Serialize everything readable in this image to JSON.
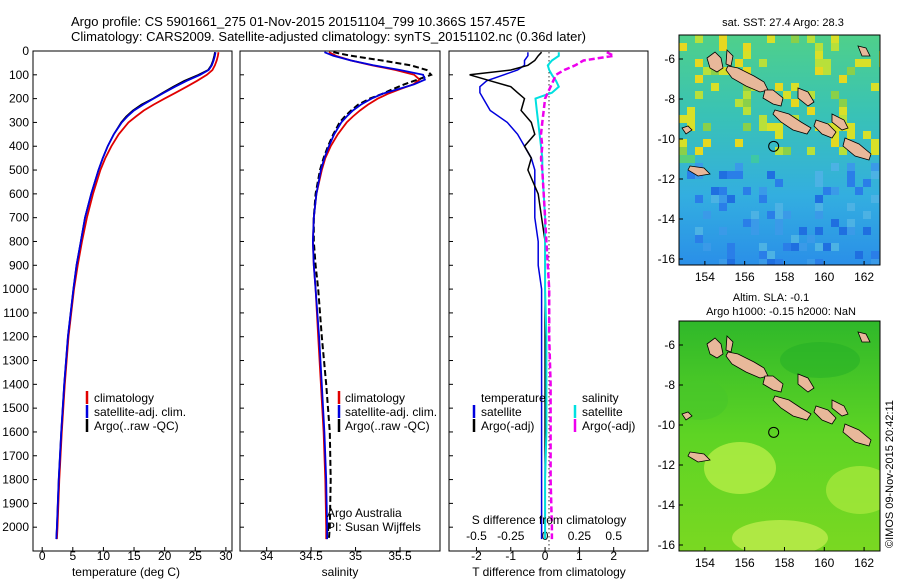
{
  "header": {
    "line1": "Argo profile: CS 5901661_275 01-Nov-2015 20151104_799 10.366S 157.457E",
    "line2": "Climatology: CARS2009. Satellite-adjusted climatology: synTS_20151102.nc (0.36d later)"
  },
  "colors": {
    "climatology": "#e00000",
    "satellite": "#0000dd",
    "argo": "#000000",
    "sal_satellite": "#00e0e0",
    "sal_argo": "#ee00ee",
    "land": "#e8b89a"
  },
  "depth_axis": {
    "ylim": [
      0,
      2100
    ],
    "ticks": [
      "0",
      "100",
      "200",
      "300",
      "400",
      "500",
      "600",
      "700",
      "800",
      "900",
      "1000",
      "1100",
      "1200",
      "1300",
      "1400",
      "1500",
      "1600",
      "1700",
      "1800",
      "1900",
      "2000"
    ]
  },
  "chart_data": [
    {
      "type": "line",
      "name": "temperature-profile",
      "xlabel": "temperature (deg C)",
      "xlim": [
        -1.5,
        31
      ],
      "xticks": [
        "0",
        "5",
        "10",
        "15",
        "20",
        "25",
        "30"
      ],
      "legend": [
        "climatology",
        "satellite-adj. clim.",
        "Argo(..raw -QC)"
      ],
      "depth": [
        5,
        20,
        40,
        60,
        80,
        100,
        125,
        150,
        175,
        200,
        225,
        250,
        275,
        300,
        350,
        400,
        450,
        500,
        600,
        700,
        800,
        900,
        1000,
        1200,
        1400,
        1600,
        1800,
        2000,
        2050
      ],
      "series": [
        {
          "name": "climatology",
          "values": [
            28.8,
            28.7,
            28.5,
            28.2,
            27.8,
            26.9,
            25.3,
            23.6,
            21.8,
            20.0,
            18.2,
            16.6,
            15.3,
            14.1,
            12.5,
            11.3,
            10.3,
            9.5,
            8.3,
            7.3,
            6.5,
            5.8,
            5.2,
            4.3,
            3.7,
            3.2,
            2.8,
            2.5,
            2.4
          ]
        },
        {
          "name": "satellite-adj. clim.",
          "values": [
            28.3,
            28.2,
            28.0,
            27.7,
            27.2,
            25.8,
            23.6,
            21.7,
            19.9,
            18.2,
            16.5,
            15.0,
            13.9,
            13.0,
            11.7,
            10.7,
            9.9,
            9.2,
            8.0,
            7.0,
            6.3,
            5.6,
            5.1,
            4.2,
            3.6,
            3.1,
            2.7,
            2.4,
            2.3
          ]
        },
        {
          "name": "Argo(..raw -QC)",
          "values": [
            28.2,
            28.1,
            27.9,
            27.6,
            27.1,
            25.5,
            23.2,
            21.4,
            19.7,
            18.1,
            16.2,
            14.8,
            13.7,
            12.9,
            11.7,
            10.7,
            9.9,
            9.2,
            8.0,
            7.0,
            6.3,
            5.6,
            5.1,
            4.2,
            3.6,
            3.1,
            2.7,
            2.4,
            2.3
          ]
        }
      ]
    },
    {
      "type": "line",
      "name": "salinity-profile",
      "xlabel": "salinity",
      "xlim": [
        33.7,
        35.95
      ],
      "xticks": [
        "34",
        "34.5",
        "35",
        "35.5"
      ],
      "legend": [
        "climatology",
        "satellite-adj. clim.",
        "Argo(..raw -QC)"
      ],
      "depth": [
        5,
        20,
        40,
        60,
        80,
        100,
        120,
        140,
        160,
        180,
        200,
        225,
        250,
        275,
        300,
        350,
        400,
        450,
        500,
        600,
        700,
        800,
        900,
        1000,
        1200,
        1400,
        1600,
        1800,
        2000,
        2050
      ],
      "series": [
        {
          "name": "climatology",
          "values": [
            34.7,
            34.78,
            34.95,
            35.18,
            35.45,
            35.66,
            35.72,
            35.65,
            35.5,
            35.36,
            35.25,
            35.14,
            35.05,
            34.97,
            34.9,
            34.8,
            34.72,
            34.66,
            34.62,
            34.56,
            34.53,
            34.52,
            34.53,
            34.55,
            34.58,
            34.61,
            34.64,
            34.66,
            34.67,
            34.67
          ]
        },
        {
          "name": "satellite-adj. clim.",
          "values": [
            34.65,
            34.75,
            34.95,
            35.2,
            35.5,
            35.76,
            35.78,
            35.66,
            35.48,
            35.3,
            35.18,
            35.06,
            34.97,
            34.9,
            34.84,
            34.76,
            34.7,
            34.65,
            34.61,
            34.56,
            34.53,
            34.52,
            34.53,
            34.55,
            34.59,
            34.62,
            34.65,
            34.67,
            34.68,
            34.68
          ]
        },
        {
          "name": "Argo(..raw -QC)",
          "values": [
            34.75,
            34.95,
            35.3,
            35.62,
            35.8,
            35.85,
            35.7,
            35.55,
            35.42,
            35.3,
            35.16,
            35.03,
            34.95,
            34.88,
            34.82,
            34.75,
            34.69,
            34.64,
            34.6,
            34.55,
            34.53,
            34.53,
            34.55,
            34.58,
            34.62,
            34.67,
            34.71,
            34.72,
            34.71,
            34.7
          ]
        }
      ]
    },
    {
      "type": "line",
      "name": "difference-profile",
      "legend_left_title": "temperature",
      "legend_right_title": "salinity",
      "legend_left": [
        "satellite",
        "Argo(-adj)"
      ],
      "legend_right": [
        "satellite",
        "Argo(-adj)"
      ],
      "top_label": "S difference from climatology",
      "xlabel": "T difference from climatology",
      "t_xlim": [
        -2.8,
        3.0
      ],
      "t_xticks": [
        "-2",
        "-1",
        "0",
        "1",
        "2"
      ],
      "s_xlim": [
        -0.7,
        0.75
      ],
      "s_xticks": [
        "-0.5",
        "-0.25",
        "0",
        "0.25",
        "0.5"
      ],
      "depth": [
        5,
        20,
        40,
        60,
        80,
        100,
        125,
        150,
        175,
        200,
        250,
        300,
        350,
        400,
        450,
        500,
        600,
        700,
        800,
        900,
        1000,
        1200,
        1400,
        1600,
        1800,
        2000,
        2050
      ],
      "series": [
        {
          "name": "temperature satellite",
          "values": [
            -0.5,
            -0.5,
            -0.6,
            -0.6,
            -0.8,
            -1.2,
            -1.7,
            -1.9,
            -1.9,
            -1.8,
            -1.6,
            -1.1,
            -0.8,
            -0.6,
            -0.4,
            -0.3,
            -0.3,
            -0.3,
            -0.2,
            -0.2,
            -0.1,
            -0.1,
            -0.1,
            -0.1,
            -0.1,
            -0.1,
            -0.1
          ]
        },
        {
          "name": "temperature Argo(-adj)",
          "values": [
            -0.1,
            -0.2,
            -0.3,
            -0.5,
            -1.0,
            -2.2,
            -1.6,
            -1.0,
            -0.8,
            -0.6,
            -0.7,
            -0.4,
            -0.3,
            -0.6,
            -0.4,
            -0.5,
            -0.2,
            -0.1,
            0.0,
            0.0,
            0.0,
            0.0,
            0.0,
            0.0,
            0.0,
            0.0,
            0.0
          ]
        },
        {
          "name": "salinity satellite",
          "values": [
            0.1,
            0.1,
            0.05,
            0.02,
            0.03,
            0.05,
            0.08,
            0.1,
            0.05,
            -0.07,
            -0.06,
            -0.05,
            -0.04,
            -0.03,
            -0.02,
            -0.02,
            -0.01,
            0.0,
            0.0,
            0.0,
            0.0,
            0.01,
            0.01,
            0.01,
            0.0,
            0.0,
            0.0
          ]
        },
        {
          "name": "salinity Argo(-adj)",
          "values": [
            0.45,
            0.5,
            0.28,
            0.22,
            0.14,
            0.08,
            0.06,
            0.04,
            0.02,
            0.0,
            -0.01,
            -0.02,
            -0.03,
            -0.02,
            -0.03,
            -0.02,
            -0.01,
            0.0,
            0.01,
            0.02,
            0.03,
            0.03,
            0.04,
            0.04,
            0.04,
            0.05,
            0.05
          ]
        }
      ]
    },
    {
      "type": "heatmap",
      "name": "sst-map",
      "title": "sat. SST: 27.4  Argo: 28.3",
      "xticks": [
        "154",
        "156",
        "158",
        "160",
        "162"
      ],
      "yticks": [
        "-6",
        "-8",
        "-10",
        "-12",
        "-14",
        "-16"
      ],
      "xlim": [
        152.7,
        162.8
      ],
      "ylim": [
        -16.3,
        -4.8
      ],
      "float_position": {
        "lon": 157.457,
        "lat": -10.366
      }
    },
    {
      "type": "heatmap",
      "name": "sla-map",
      "title_line1": "Altim. SLA: -0.1",
      "title_line2": "Argo h1000: -0.15 h2000: NaN",
      "xticks": [
        "154",
        "156",
        "158",
        "160",
        "162"
      ],
      "yticks": [
        "-6",
        "-8",
        "-10",
        "-12",
        "-14",
        "-16"
      ],
      "xlim": [
        152.7,
        162.8
      ],
      "ylim": [
        -16.3,
        -4.8
      ],
      "float_position": {
        "lon": 157.457,
        "lat": -10.366
      }
    }
  ],
  "panel_notes": {
    "line1": "Argo Australia",
    "line2": "PI: Susan Wijffels"
  },
  "credit": "©IMOS 09-Nov-2015 20:42:11"
}
